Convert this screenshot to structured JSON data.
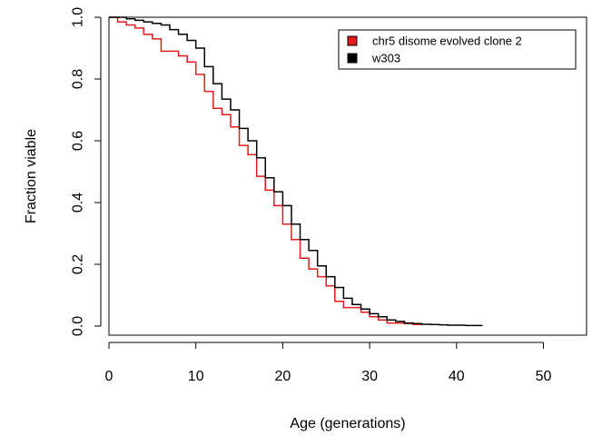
{
  "chart_data": {
    "type": "line",
    "step": true,
    "xlabel": "Age (generations)",
    "ylabel": "Fraction viable",
    "xlim": [
      0,
      55
    ],
    "ylim": [
      0,
      1.0
    ],
    "xticks": [
      0,
      10,
      20,
      30,
      40,
      50
    ],
    "yticks": [
      0.0,
      0.2,
      0.4,
      0.6,
      0.8,
      1.0
    ],
    "ytick_labels": [
      "0.0",
      "0.2",
      "0.4",
      "0.6",
      "0.8",
      "1.0"
    ],
    "grid": false,
    "legend_position": "top-right",
    "series": [
      {
        "name": "chr5 disome evolved clone 2",
        "color": "#e41a1c",
        "x": [
          0,
          1,
          2,
          3,
          4,
          5,
          6,
          7,
          8,
          9,
          10,
          11,
          12,
          13,
          14,
          15,
          16,
          17,
          18,
          19,
          20,
          21,
          22,
          23,
          24,
          25,
          26,
          27,
          28,
          29,
          30,
          31,
          32,
          33,
          34,
          35,
          36
        ],
        "y": [
          1.0,
          0.985,
          0.975,
          0.965,
          0.945,
          0.93,
          0.89,
          0.89,
          0.875,
          0.855,
          0.815,
          0.76,
          0.705,
          0.685,
          0.645,
          0.585,
          0.555,
          0.485,
          0.44,
          0.39,
          0.33,
          0.28,
          0.22,
          0.185,
          0.16,
          0.13,
          0.08,
          0.06,
          0.06,
          0.045,
          0.03,
          0.02,
          0.01,
          0.01,
          0.008,
          0.005,
          0.005
        ]
      },
      {
        "name": "w303",
        "color": "#000000",
        "x": [
          0,
          1,
          2,
          3,
          4,
          5,
          6,
          7,
          8,
          9,
          10,
          11,
          12,
          13,
          14,
          15,
          16,
          17,
          18,
          19,
          20,
          21,
          22,
          23,
          24,
          25,
          26,
          27,
          28,
          29,
          30,
          31,
          32,
          33,
          34,
          35,
          36,
          37,
          38,
          39,
          40,
          41,
          42,
          43
        ],
        "y": [
          1.0,
          1.0,
          0.995,
          0.99,
          0.985,
          0.98,
          0.975,
          0.96,
          0.945,
          0.925,
          0.9,
          0.84,
          0.785,
          0.735,
          0.7,
          0.64,
          0.6,
          0.545,
          0.48,
          0.435,
          0.39,
          0.33,
          0.28,
          0.245,
          0.195,
          0.16,
          0.125,
          0.09,
          0.07,
          0.055,
          0.04,
          0.03,
          0.02,
          0.015,
          0.01,
          0.008,
          0.006,
          0.005,
          0.004,
          0.003,
          0.003,
          0.002,
          0.002,
          0.002
        ]
      }
    ]
  }
}
